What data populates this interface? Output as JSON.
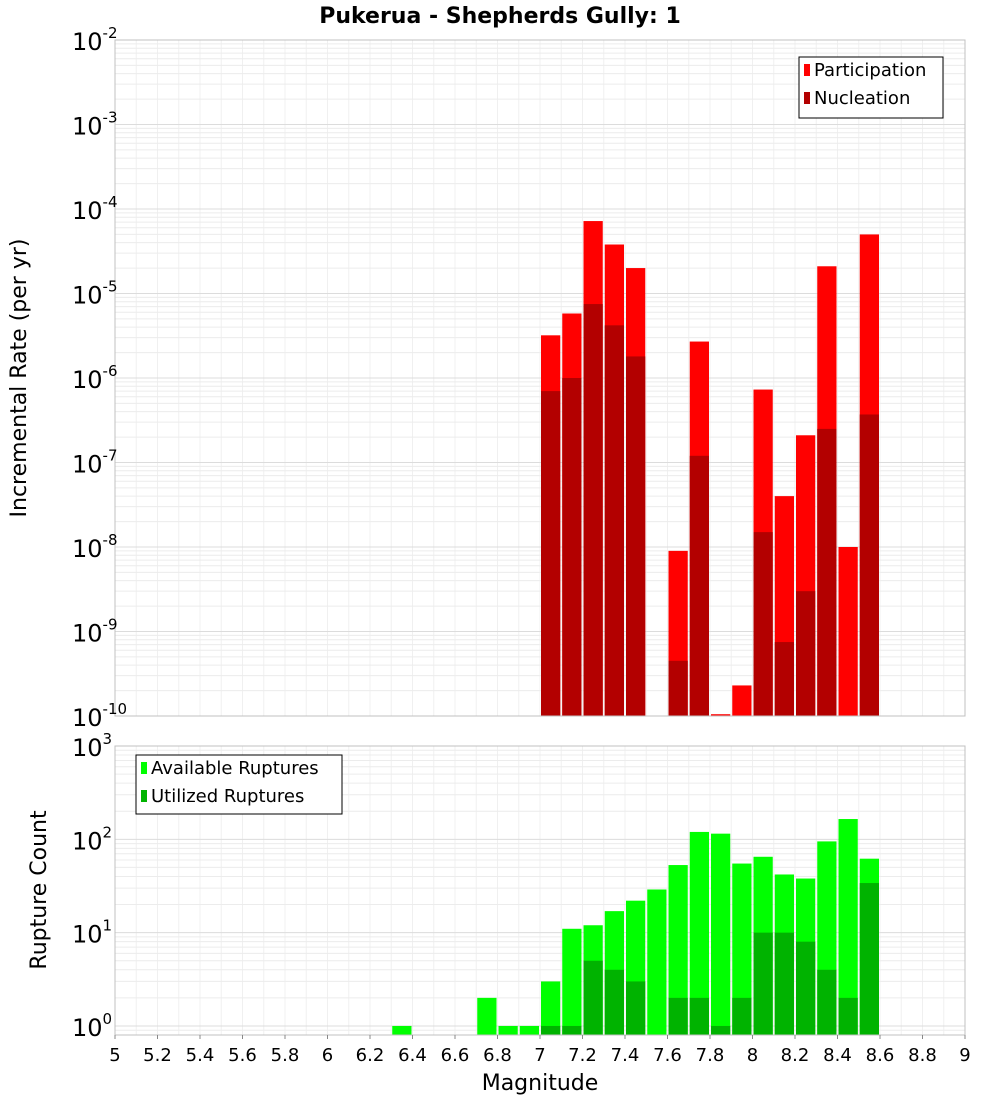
{
  "title": "Pukerua - Shepherds Gully: 1",
  "colors": {
    "participation": "#ff0000",
    "nucleation": "#b30000",
    "available": "#00ff00",
    "utilized": "#00b300",
    "grid": "#e6e6e6",
    "frame": "#c0c0c0"
  },
  "chart_data": [
    {
      "type": "bar",
      "ylabel": "Incremental Rate (per yr)",
      "yscale": "log",
      "ylim": [
        1e-10,
        0.01
      ],
      "xlim": [
        5,
        9
      ],
      "legend_position": "top-right",
      "series": [
        {
          "name": "Participation",
          "x": [
            7.05,
            7.15,
            7.25,
            7.35,
            7.45,
            7.65,
            7.75,
            7.85,
            7.95,
            8.05,
            8.15,
            8.25,
            8.35,
            8.45,
            8.55
          ],
          "values": [
            3.2e-06,
            5.8e-06,
            7.2e-05,
            3.8e-05,
            2e-05,
            9e-09,
            2.7e-06,
            1.05e-10,
            2.3e-10,
            7.3e-07,
            4e-08,
            2.1e-07,
            2.1e-05,
            1e-08,
            5e-05
          ]
        },
        {
          "name": "Nucleation",
          "x": [
            7.05,
            7.15,
            7.25,
            7.35,
            7.45,
            7.65,
            7.75,
            8.05,
            8.15,
            8.25,
            8.35,
            8.55
          ],
          "values": [
            7e-07,
            1e-06,
            7.5e-06,
            4.2e-06,
            1.8e-06,
            4.5e-10,
            1.2e-07,
            1.5e-08,
            7.5e-10,
            3e-09,
            2.5e-07,
            3.7e-07
          ]
        }
      ]
    },
    {
      "type": "bar",
      "ylabel": "Rupture Count",
      "xlabel": "Magnitude",
      "yscale": "log",
      "ylim": [
        0.8,
        1000
      ],
      "xlim": [
        5,
        9
      ],
      "xticks": [
        "5",
        "5.2",
        "5.4",
        "5.6",
        "5.8",
        "6",
        "6.2",
        "6.4",
        "6.6",
        "6.8",
        "7",
        "7.2",
        "7.4",
        "7.6",
        "7.8",
        "8",
        "8.2",
        "8.4",
        "8.6",
        "8.8",
        "9"
      ],
      "legend_position": "top-left",
      "series": [
        {
          "name": "Available Ruptures",
          "x": [
            6.35,
            6.75,
            6.85,
            6.95,
            7.05,
            7.15,
            7.25,
            7.35,
            7.45,
            7.55,
            7.65,
            7.75,
            7.85,
            7.95,
            8.05,
            8.15,
            8.25,
            8.35,
            8.45,
            8.55
          ],
          "values": [
            1,
            2,
            1,
            1,
            3,
            11,
            12,
            17,
            22,
            29,
            53,
            120,
            115,
            55,
            65,
            42,
            38,
            95,
            165,
            62
          ]
        },
        {
          "name": "Utilized Ruptures",
          "x": [
            7.05,
            7.15,
            7.25,
            7.35,
            7.45,
            7.65,
            7.75,
            7.85,
            7.95,
            8.05,
            8.15,
            8.25,
            8.35,
            8.45,
            8.55
          ],
          "values": [
            1,
            1,
            5,
            4,
            3,
            2,
            2,
            1,
            2,
            10,
            10,
            8,
            4,
            2,
            34
          ]
        }
      ]
    }
  ]
}
